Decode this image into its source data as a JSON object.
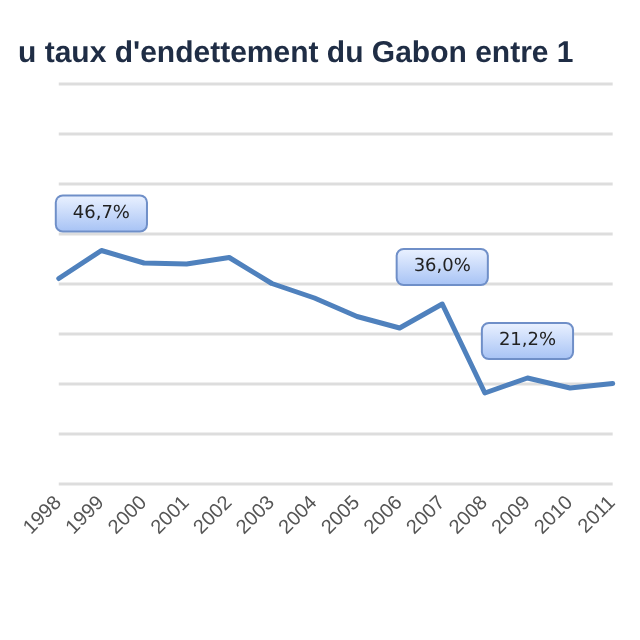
{
  "chart_data": {
    "type": "line",
    "title": "u taux d'endettement du Gabon entre 1",
    "categories": [
      "1998",
      "1999",
      "2000",
      "2001",
      "2002",
      "2003",
      "2004",
      "2005",
      "2006",
      "2007",
      "2008",
      "2009",
      "2010",
      "2011"
    ],
    "series": [
      {
        "color": "#4f81bd",
        "values": [
          41.1,
          46.7,
          44.2,
          44.0,
          45.3,
          40.1,
          37.2,
          33.5,
          31.2,
          36.0,
          18.2,
          21.2,
          19.2,
          20.1
        ],
        "value_labels": [
          null,
          "46,7%",
          null,
          null,
          null,
          null,
          null,
          null,
          null,
          "36,0%",
          null,
          "21,2%",
          null,
          null
        ]
      }
    ],
    "ylim": [
      0,
      80
    ],
    "yticks": [
      {
        "value": 0,
        "label": null
      },
      {
        "value": 10,
        "label": null
      },
      {
        "value": 20,
        "label": null
      },
      {
        "value": 30,
        "label": null
      },
      {
        "value": 40,
        "label": null
      },
      {
        "value": 50,
        "label": null
      },
      {
        "value": 60,
        "label": null
      },
      {
        "value": 70,
        "label": null
      },
      {
        "value": 80,
        "label": null
      }
    ],
    "tick_labels": "x",
    "grid": "y",
    "marker": "none",
    "line_style": "solid"
  }
}
